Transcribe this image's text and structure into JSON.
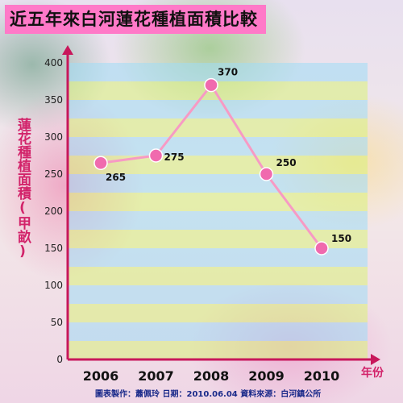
{
  "chart_data": {
    "type": "line",
    "title": "近五年來白河蓮花種植面積比較",
    "ylabel": "蓮花種植面積(甲畝)",
    "xlabel": "年份",
    "categories": [
      "2006",
      "2007",
      "2008",
      "2009",
      "2010"
    ],
    "series": [
      {
        "values": [
          265,
          275,
          370,
          250,
          150
        ],
        "data_labels": [
          "265",
          "275",
          "370",
          "250",
          "150"
        ]
      }
    ],
    "ylim": [
      0,
      400
    ],
    "yticks": [
      0,
      50,
      100,
      150,
      200,
      250,
      300,
      350,
      400
    ],
    "grid": "horizontal bands",
    "colors": {
      "line": "#f79ac4",
      "marker": "#f06aae",
      "axis": "#c8175b",
      "band_a": "#d8f27a",
      "band_b": "#9fdcf5",
      "title_bg": "#ff79c8"
    }
  },
  "footer": {
    "credits": "圖表製作：蕭佩玲  日期：2010.06.04  資料來源：白河鎮公所"
  }
}
